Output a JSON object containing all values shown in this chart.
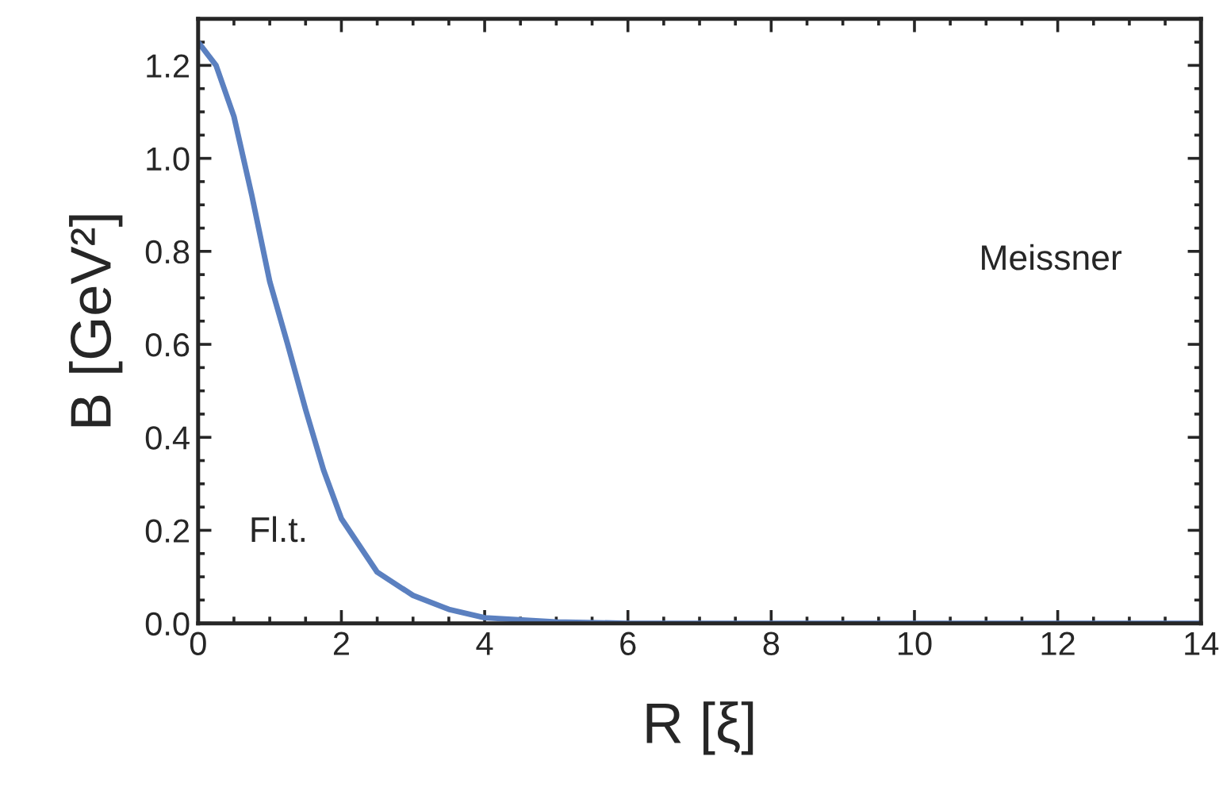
{
  "chart_data": {
    "type": "line",
    "xlabel": "R [ξ]",
    "ylabel": "B [GeV²]",
    "x": [
      0,
      0.25,
      0.5,
      0.75,
      1,
      1.25,
      1.5,
      1.75,
      2,
      2.5,
      3,
      3.5,
      4,
      5,
      6,
      8,
      10,
      12,
      14
    ],
    "series": [
      {
        "color": "#5b80c0",
        "values": [
          1.25,
          1.2,
          1.09,
          0.92,
          0.735,
          0.6,
          0.46,
          0.33,
          0.225,
          0.11,
          0.06,
          0.03,
          0.012,
          0.003,
          0,
          0,
          0,
          0,
          0
        ]
      }
    ],
    "xlim": [
      0,
      14
    ],
    "ylim": [
      0,
      1.3
    ],
    "xticks": [
      0,
      2,
      4,
      6,
      8,
      10,
      12,
      14
    ],
    "yticks": [
      {
        "value": 0,
        "label": "0.0"
      },
      {
        "value": 0.2,
        "label": "0.2"
      },
      {
        "value": 0.4,
        "label": "0.4"
      },
      {
        "value": 0.6,
        "label": "0.6"
      },
      {
        "value": 0.8,
        "label": "0.8"
      },
      {
        "value": 1.0,
        "label": "1.0"
      },
      {
        "value": 1.2,
        "label": "1.2"
      }
    ],
    "annotations": [
      "Fl.t.",
      "Meissner"
    ],
    "grid": false,
    "legend": false,
    "line_style": "solid",
    "marker": "none"
  }
}
